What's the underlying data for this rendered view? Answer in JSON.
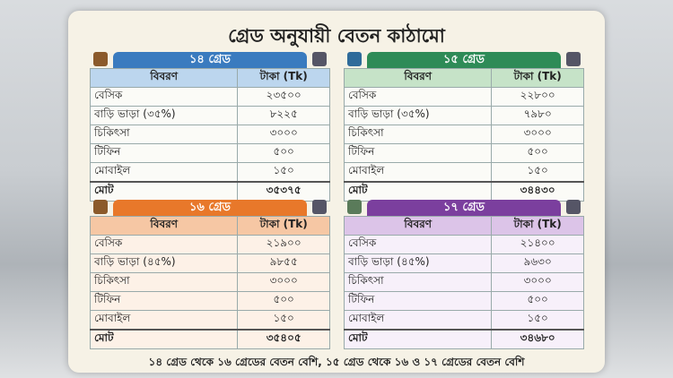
{
  "header": {
    "title": "গ্রেড অনুযায়ী বেতন কাঠামো"
  },
  "columns": [
    "বিবরণ",
    "টাকা (Tk)"
  ],
  "grades": [
    {
      "name": "১৪ গ্রেড",
      "rows": [
        [
          "বেসিক",
          "২৩৫০০"
        ],
        [
          "বাড়ি ভাড়া (৩৫%)",
          "৮২২৫"
        ],
        [
          "চিকিৎসা",
          "৩০০০"
        ],
        [
          "টিফিন",
          "৫০০"
        ],
        [
          "মোবাইল",
          "১৫০"
        ]
      ],
      "total": [
        "মোট",
        "৩৫৩৭৫"
      ]
    },
    {
      "name": "১৫ গ্রেড",
      "rows": [
        [
          "বেসিক",
          "২২৮০০"
        ],
        [
          "বাড়ি ভাড়া (৩৫%)",
          "৭৯৮০"
        ],
        [
          "চিকিৎসা",
          "৩০০০"
        ],
        [
          "টিফিন",
          "৫০০"
        ],
        [
          "মোবাইল",
          "১৫০"
        ]
      ],
      "total": [
        "মোট",
        "৩৪৪৩০"
      ]
    },
    {
      "name": "১৬ গ্রেড",
      "rows": [
        [
          "বেসিক",
          "২১৯০০"
        ],
        [
          "বাড়ি ভাড়া (৪৫%)",
          "৯৮৫৫"
        ],
        [
          "চিকিৎসা",
          "৩০০০"
        ],
        [
          "টিফিন",
          "৫০০"
        ],
        [
          "মোবাইল",
          "১৫০"
        ]
      ],
      "total": [
        "মোট",
        "৩৫৪০৫"
      ]
    },
    {
      "name": "১৭ গ্রেড",
      "rows": [
        [
          "বেসিক",
          "২১৪০০"
        ],
        [
          "বাড়ি ভাড়া (৪৫%)",
          "৯৬৩০"
        ],
        [
          "চিকিৎসা",
          "৩০০০"
        ],
        [
          "টিফিন",
          "৫০০"
        ],
        [
          "মোবাইল",
          "১৫০"
        ]
      ],
      "total": [
        "মোট",
        "৩৪৬৮০"
      ]
    }
  ],
  "footer": {
    "note": "১৪ গ্রেড থেকে ১৬ গ্রেডের বেতন বেশি, ১৫ গ্রেড থেকে ১৬ ও ১৭ গ্রেডের বেতন বেশি"
  }
}
